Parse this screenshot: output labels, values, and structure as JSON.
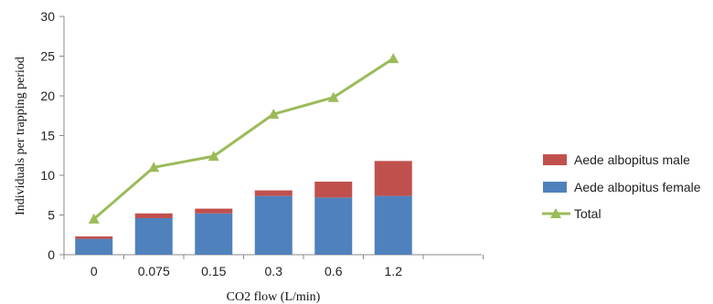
{
  "chart_data": {
    "type": "bar",
    "categories": [
      "0",
      "0.075",
      "0.15",
      "0.3",
      "0.6",
      "1.2"
    ],
    "xlabel": "CO2 flow (L/min)",
    "ylabel": "Individuals per trapping period",
    "ylim": [
      0,
      30
    ],
    "yticks": [
      "0",
      "5",
      "10",
      "15",
      "20",
      "25",
      "30"
    ],
    "grid": false,
    "legend_position": "right",
    "series": [
      {
        "name": "Aede albopitus female",
        "kind": "bar",
        "color": "#4f81bd",
        "values": [
          2.0,
          4.6,
          5.2,
          7.4,
          7.2,
          7.4
        ]
      },
      {
        "name": "Aede albopitus male",
        "kind": "bar",
        "color": "#c0504d",
        "values": [
          0.3,
          0.6,
          0.6,
          0.7,
          2.0,
          4.4
        ]
      },
      {
        "name": "Total",
        "kind": "line",
        "color": "#9bbb59",
        "marker": "triangle",
        "values": [
          4.5,
          11.0,
          12.4,
          17.7,
          19.8,
          24.7
        ]
      }
    ],
    "legend_order": [
      "Aede albopitus male",
      "Aede albopitus female",
      "Total"
    ]
  }
}
